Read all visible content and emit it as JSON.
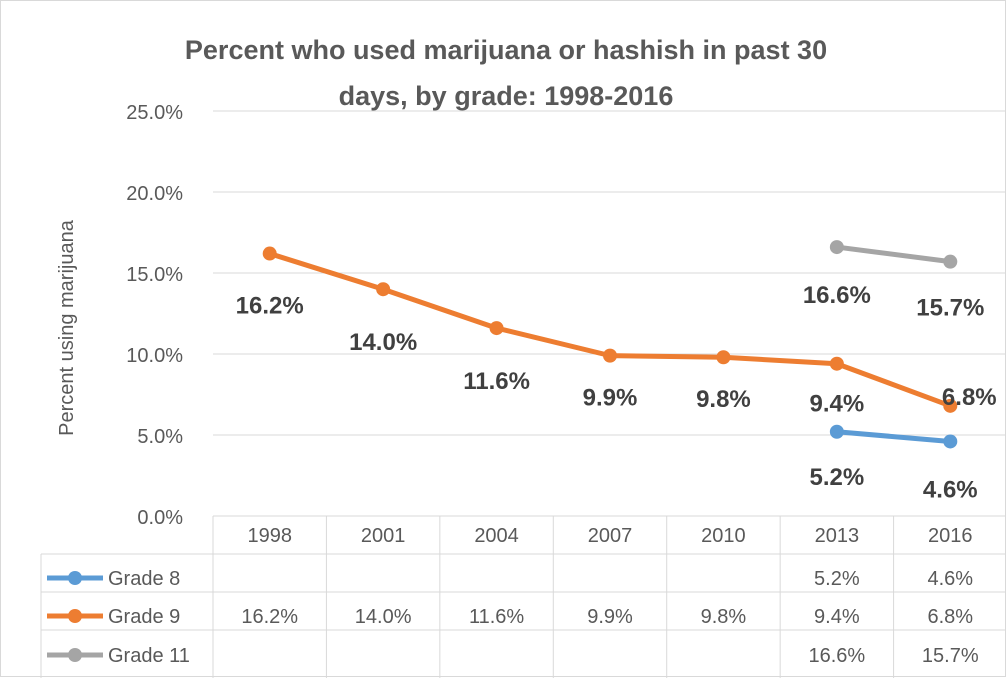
{
  "chart_data": {
    "type": "line",
    "title": "Percent who used marijuana or hashish in past 30 days, by grade: 1998-2016",
    "title_lines": [
      "Percent who used marijuana or hashish in past 30",
      "days, by grade: 1998-2016"
    ],
    "ylabel": "Percent using marijuana",
    "xlabel": "",
    "categories": [
      "1998",
      "2001",
      "2004",
      "2007",
      "2010",
      "2013",
      "2016"
    ],
    "y_ticks": [
      "0.0%",
      "5.0%",
      "10.0%",
      "15.0%",
      "20.0%",
      "25.0%"
    ],
    "ylim": [
      0,
      25
    ],
    "grid": true,
    "legend_placement": "data-table",
    "series": [
      {
        "name": "Grade 8",
        "color": "#5b9bd5",
        "values": [
          null,
          null,
          null,
          null,
          null,
          5.2,
          4.6
        ],
        "labels": [
          "",
          "",
          "",
          "",
          "",
          "5.2%",
          "4.6%"
        ]
      },
      {
        "name": "Grade 9",
        "color": "#ed7d31",
        "values": [
          16.2,
          14.0,
          11.6,
          9.9,
          9.8,
          9.4,
          6.8
        ],
        "labels": [
          "16.2%",
          "14.0%",
          "11.6%",
          "9.9%",
          "9.8%",
          "9.4%",
          "6.8%"
        ]
      },
      {
        "name": "Grade 11",
        "color": "#a5a5a5",
        "values": [
          null,
          null,
          null,
          null,
          null,
          16.6,
          15.7
        ],
        "labels": [
          "",
          "",
          "",
          "",
          "",
          "16.6%",
          "15.7%"
        ]
      }
    ]
  }
}
